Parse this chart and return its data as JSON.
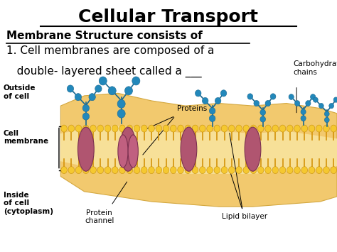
{
  "title": "Cellular Transport",
  "subtitle": "Membrane Structure consists of",
  "body_text_line1": "1. Cell membranes are composed of a",
  "body_text_line2": "   double- layered sheet called a ___",
  "label_outside": "Outside\nof cell",
  "label_cell_membrane": "Cell\nmembrane",
  "label_inside": "Inside\nof cell\n(cytoplasm)",
  "label_proteins": "Proteins",
  "label_protein_channel": "Protein\nchannel",
  "label_lipid_bilayer": "Lipid bilayer",
  "label_carbohydrate": "Carbohydrate\nchains",
  "bg_color": "#ffffff",
  "text_color": "#000000",
  "title_fontsize": 18,
  "subtitle_fontsize": 11,
  "body_fontsize": 11,
  "head_color": "#f5c830",
  "head_edge": "#c89010",
  "tail_color": "#d4920a",
  "protein_color": "#b05570",
  "carbohydrate_color": "#2288bb",
  "outer_blob_color": "#f0c878",
  "label_fontsize": 7.5
}
